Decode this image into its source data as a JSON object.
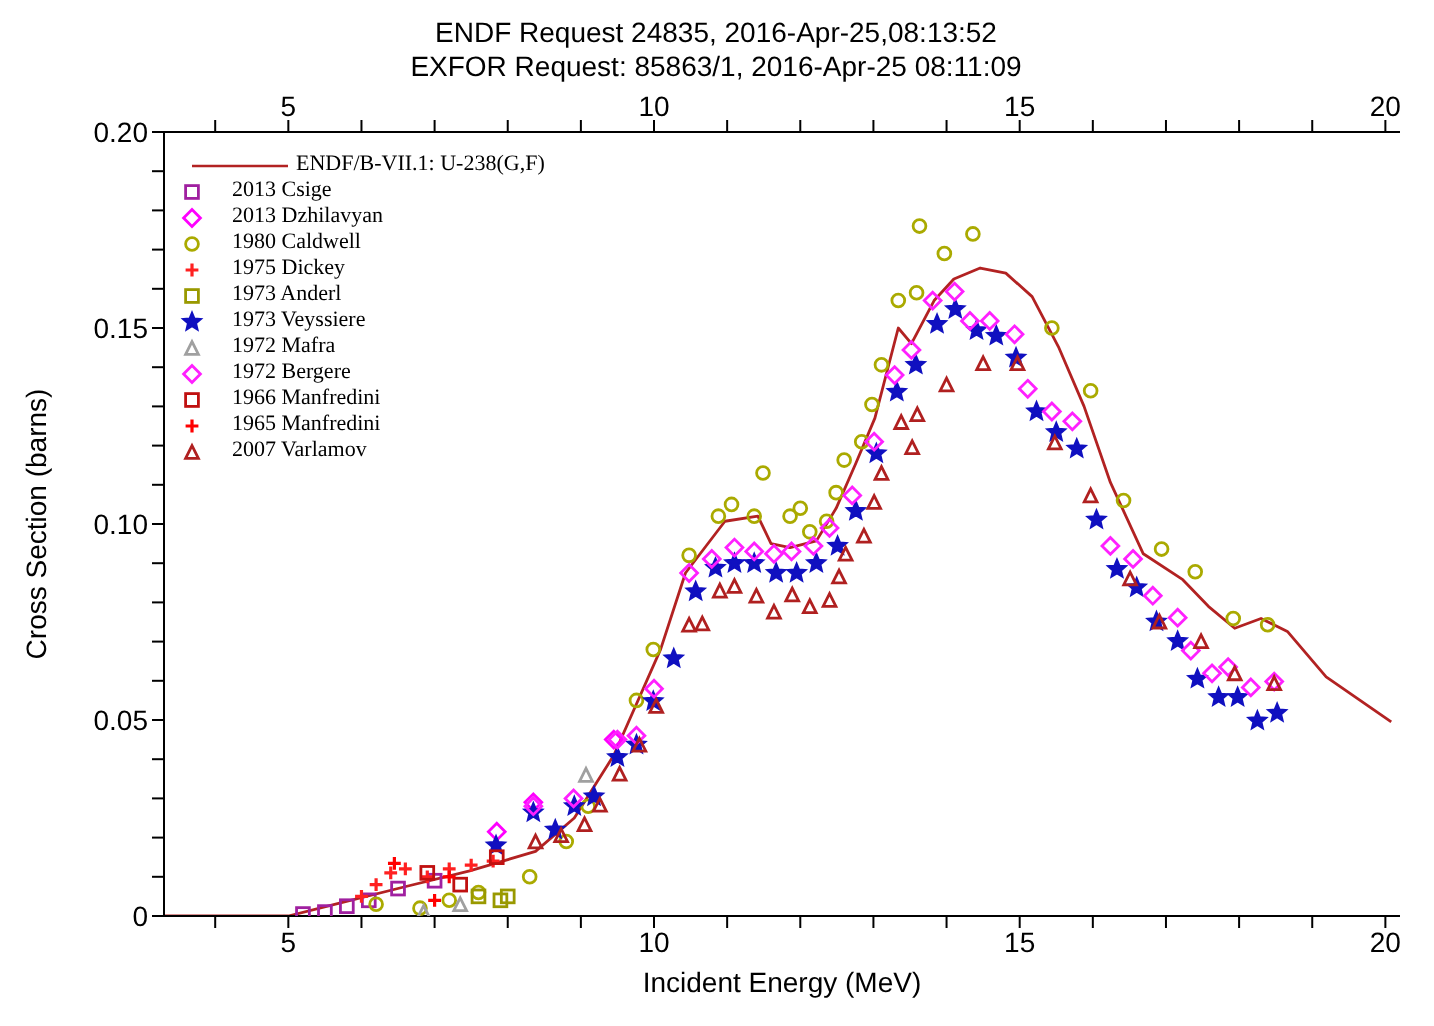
{
  "chart_data": {
    "type": "scatter",
    "title": "ENDF Request 24835, 2016-Apr-25,08:13:52",
    "subtitle": "EXFOR Request: 85863/1, 2016-Apr-25 08:11:09",
    "xlabel": "Incident Energy (MeV)",
    "ylabel": "Cross Section (barns)",
    "xlim": [
      3.3,
      20.2
    ],
    "xticks": [
      {
        "value": 4,
        "label": null
      },
      5,
      {
        "value": 6,
        "label": null
      },
      {
        "value": 7,
        "label": null
      },
      {
        "value": 8,
        "label": null
      },
      {
        "value": 9,
        "label": null
      },
      10,
      {
        "value": 11,
        "label": null
      },
      {
        "value": 12,
        "label": null
      },
      {
        "value": 13,
        "label": null
      },
      {
        "value": 14,
        "label": null
      },
      15,
      {
        "value": 16,
        "label": null
      },
      {
        "value": 17,
        "label": null
      },
      {
        "value": 18,
        "label": null
      },
      {
        "value": 19,
        "label": null
      },
      20
    ],
    "x2lim": [
      3.3,
      20.2
    ],
    "x2ticks": [
      {
        "value": 4,
        "label": null
      },
      5,
      {
        "value": 6,
        "label": null
      },
      {
        "value": 7,
        "label": null
      },
      {
        "value": 8,
        "label": null
      },
      {
        "value": 9,
        "label": null
      },
      10,
      {
        "value": 11,
        "label": null
      },
      {
        "value": 12,
        "label": null
      },
      {
        "value": 13,
        "label": null
      },
      {
        "value": 14,
        "label": null
      },
      15,
      {
        "value": 16,
        "label": null
      },
      {
        "value": 17,
        "label": null
      },
      {
        "value": 18,
        "label": null
      },
      {
        "value": 19,
        "label": null
      },
      20
    ],
    "ylim": [
      0,
      0.2
    ],
    "yticks": [
      0,
      {
        "value": 0.01,
        "label": null
      },
      {
        "value": 0.02,
        "label": null
      },
      {
        "value": 0.03,
        "label": null
      },
      {
        "value": 0.04,
        "label": null
      },
      0.05,
      {
        "value": 0.06,
        "label": null
      },
      {
        "value": 0.07,
        "label": null
      },
      {
        "value": 0.08,
        "label": null
      },
      {
        "value": 0.09,
        "label": null
      },
      {
        "value": 0.1,
        "label": "0.10"
      },
      {
        "value": 0.11,
        "label": null
      },
      {
        "value": 0.12,
        "label": null
      },
      {
        "value": 0.13,
        "label": null
      },
      {
        "value": 0.14,
        "label": null
      },
      0.15,
      {
        "value": 0.16,
        "label": null
      },
      {
        "value": 0.17,
        "label": null
      },
      {
        "value": 0.18,
        "label": null
      },
      {
        "value": 0.19,
        "label": null
      },
      {
        "value": 0.2,
        "label": "0.20"
      }
    ],
    "legend": "top left",
    "series": [
      {
        "name": "ENDF/B-VII.1: U-238(G,F)",
        "type": "line",
        "color": "#b22222",
        "line_style": "solid",
        "x": [
          3.3,
          5.0,
          5.7,
          6.58,
          7.48,
          8.38,
          8.91,
          9.45,
          10.09,
          10.43,
          10.97,
          11.42,
          11.6,
          11.86,
          12.22,
          12.49,
          12.76,
          13.02,
          13.34,
          13.52,
          13.83,
          14.1,
          14.46,
          14.81,
          15.17,
          15.53,
          15.88,
          16.24,
          16.69,
          17.23,
          17.58,
          17.94,
          18.3,
          18.66,
          19.19,
          20.08
        ],
        "values": [
          0,
          0,
          0.0033,
          0.0074,
          0.0115,
          0.0165,
          0.025,
          0.041,
          0.068,
          0.0875,
          0.1007,
          0.102,
          0.095,
          0.094,
          0.0957,
          0.104,
          0.1155,
          0.127,
          0.15,
          0.146,
          0.157,
          0.1625,
          0.1653,
          0.164,
          0.158,
          0.1452,
          0.13,
          0.1106,
          0.0924,
          0.0858,
          0.079,
          0.0734,
          0.0759,
          0.0726,
          0.061,
          0.0495
        ]
      },
      {
        "name": "2013 Csige",
        "color": "#a020a0",
        "marker": "square",
        "x": [
          5.2,
          5.5,
          5.8,
          6.1,
          6.5,
          7.0
        ],
        "values": [
          0.0005,
          0.001,
          0.0025,
          0.004,
          0.007,
          0.009
        ]
      },
      {
        "name": "2013 Dzhilavyan",
        "color": "#ff00ff",
        "marker": "diamond",
        "x": [
          7.85,
          8.35,
          9.45
        ],
        "values": [
          0.0215,
          0.029,
          0.045
        ]
      },
      {
        "name": "1980 Caldwell",
        "color": "#aaaa00",
        "marker": "circle",
        "x": [
          6.2,
          6.8,
          7.2,
          7.6,
          8.0,
          8.3,
          8.8,
          9.1,
          9.5,
          9.76,
          9.99,
          10.48,
          10.88,
          11.06,
          11.37,
          11.49,
          11.86,
          12.0,
          12.13,
          12.36,
          12.49,
          12.6,
          12.84,
          12.98,
          13.11,
          13.34,
          13.59,
          13.63,
          13.97,
          14.36,
          15.44,
          15.97,
          16.42,
          16.94,
          17.4,
          17.92,
          18.39
        ],
        "values": [
          0.003,
          0.002,
          0.004,
          0.006,
          null,
          0.01,
          0.019,
          0.028,
          null,
          0.055,
          0.068,
          0.092,
          0.102,
          0.105,
          0.102,
          0.113,
          0.102,
          0.104,
          0.098,
          0.1007,
          0.108,
          0.1163,
          0.121,
          0.1305,
          0.1406,
          0.157,
          0.159,
          0.176,
          0.169,
          0.174,
          0.15,
          0.134,
          0.106,
          0.0936,
          0.0878,
          0.0759,
          0.0743
        ]
      },
      {
        "name": "1975 Dickey",
        "color": "#ff2020",
        "marker": "cross",
        "x": [
          6.0,
          6.2,
          6.4,
          6.6,
          6.9,
          7.2,
          7.5,
          7.8
        ],
        "values": [
          0.005,
          0.008,
          0.011,
          0.012,
          0.01,
          0.012,
          0.013,
          0.014
        ]
      },
      {
        "name": "1973 Anderl",
        "color": "#999900",
        "marker": "square",
        "x": [
          7.6,
          7.9,
          8.0
        ],
        "values": [
          0.005,
          0.004,
          0.005
        ]
      },
      {
        "name": "1973 Veyssiere",
        "color": "#1010c0",
        "marker": "star",
        "x": [
          7.84,
          8.35,
          8.65,
          8.91,
          9.18,
          9.5,
          9.76,
          9.99,
          10.27,
          10.57,
          10.84,
          11.1,
          11.37,
          11.67,
          11.95,
          12.22,
          12.51,
          12.76,
          13.04,
          13.32,
          13.58,
          13.87,
          14.12,
          14.41,
          14.68,
          14.95,
          15.23,
          15.5,
          15.78,
          16.05,
          16.33,
          16.6,
          16.87,
          17.16,
          17.43,
          17.72,
          17.98,
          18.25,
          18.52
        ],
        "values": [
          0.018,
          0.0264,
          0.022,
          0.028,
          0.0305,
          0.0405,
          0.0437,
          0.0548,
          0.0657,
          0.0828,
          0.0888,
          0.09,
          0.09,
          0.0875,
          0.0875,
          0.09,
          0.0944,
          0.1033,
          0.118,
          0.1337,
          0.1406,
          0.151,
          0.1548,
          0.1494,
          0.148,
          0.1424,
          0.1287,
          0.1234,
          0.1192,
          0.1011,
          0.0885,
          0.0838,
          0.0751,
          0.0701,
          0.0605,
          0.0558,
          0.0558,
          0.0498,
          0.0518
        ]
      },
      {
        "name": "1972 Mafra",
        "color": "#a0a0a0",
        "marker": "triangle",
        "x": [
          6.85,
          7.35,
          9.07
        ],
        "values": [
          0.001,
          0.003,
          0.036
        ]
      },
      {
        "name": "1972 Bergere",
        "color": "#ff20ff",
        "marker": "diamond",
        "x": [
          8.35,
          8.9,
          9.5,
          9.76,
          10.0,
          10.48,
          10.79,
          11.1,
          11.37,
          11.64,
          11.88,
          12.18,
          12.4,
          12.71,
          13.01,
          13.29,
          13.52,
          13.81,
          14.11,
          14.32,
          14.59,
          14.93,
          15.11,
          15.44,
          15.72,
          16.24,
          16.55,
          16.82,
          17.16,
          17.34,
          17.63,
          17.85,
          18.16,
          18.48
        ],
        "values": [
          0.028,
          0.03,
          0.045,
          0.046,
          0.058,
          0.0875,
          0.0911,
          0.094,
          0.093,
          0.0924,
          0.093,
          0.0944,
          0.099,
          0.1073,
          0.121,
          0.138,
          0.1444,
          0.157,
          0.1593,
          0.1518,
          0.1518,
          0.1484,
          0.1345,
          0.1287,
          0.1262,
          0.0944,
          0.0911,
          0.0817,
          0.0761,
          0.0677,
          0.0619,
          0.0635,
          0.0583,
          0.0598
        ]
      },
      {
        "name": "1966 Manfredini",
        "color": "#c01010",
        "marker": "square",
        "x": [
          6.9,
          7.35,
          7.85
        ],
        "values": [
          0.011,
          0.008,
          0.015
        ]
      },
      {
        "name": "1965 Manfredini",
        "color": "#ff0000",
        "marker": "cross",
        "x": [
          6.45,
          7.0,
          7.2
        ],
        "values": [
          0.0134,
          0.004,
          0.01
        ]
      },
      {
        "name": "2007 Varlamov",
        "color": "#b02020",
        "marker": "triangle",
        "x": [
          8.38,
          8.73,
          9.05,
          9.26,
          9.53,
          9.8,
          10.03,
          10.48,
          10.66,
          10.9,
          11.1,
          11.4,
          11.64,
          11.89,
          12.13,
          12.4,
          12.53,
          12.62,
          12.87,
          13.01,
          13.11,
          13.38,
          13.53,
          13.6,
          14.0,
          14.5,
          14.97,
          15.48,
          15.97,
          16.51,
          16.91,
          17.48,
          17.94,
          18.48
        ],
        "values": [
          0.019,
          0.0206,
          0.0234,
          0.0284,
          0.0363,
          0.0437,
          0.0536,
          0.0743,
          0.0746,
          0.083,
          0.0842,
          0.0817,
          0.0776,
          0.082,
          0.079,
          0.0806,
          0.0866,
          0.0924,
          0.097,
          0.1056,
          0.113,
          0.126,
          0.1196,
          0.128,
          0.1356,
          0.141,
          0.141,
          0.1208,
          0.1073,
          0.0861,
          0.0751,
          0.0701,
          0.0619,
          0.0594
        ]
      }
    ]
  }
}
